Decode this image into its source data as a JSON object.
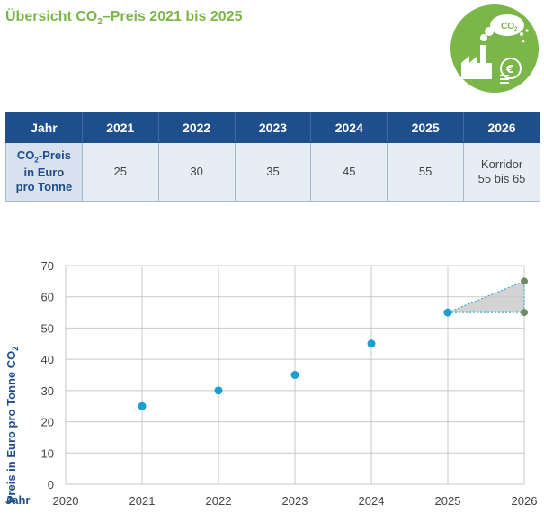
{
  "title": {
    "prefix": "Übersicht CO",
    "sub": "2",
    "suffix": "–Preis 2021 bis 2025"
  },
  "logo": {
    "icon": "co2-factory-coins-icon",
    "text_prefix": "CO",
    "text_sub": "2",
    "color": "#7ab648"
  },
  "table": {
    "header": [
      "Jahr",
      "2021",
      "2022",
      "2023",
      "2024",
      "2025",
      "2026"
    ],
    "row_label": {
      "line1_prefix": "CO",
      "line1_sub": "2",
      "line1_suffix": "-Preis",
      "line2": "in Euro",
      "line3": "pro Tonne"
    },
    "values": [
      "25",
      "30",
      "35",
      "45",
      "55"
    ],
    "last_line1": "Korridor",
    "last_line2": "55 bis 65"
  },
  "colors": {
    "title": "#7ab648",
    "table_header": "#1f4e8c",
    "table_cell": "#e6edf5",
    "points": "#1a9fd0",
    "corridor_points": "#6e8b63",
    "corridor_fill": "#c8c8c8"
  },
  "chart_data": {
    "type": "scatter",
    "x_tick_labels": [
      "2020",
      "2021",
      "2022",
      "2023",
      "2024",
      "2025",
      "2026"
    ],
    "y_tick_labels": [
      "0",
      "10",
      "20",
      "30",
      "40",
      "50",
      "60",
      "70"
    ],
    "xlim": [
      2020,
      2026
    ],
    "ylim": [
      0,
      70
    ],
    "xlabel": "Jahr",
    "ylabel_prefix": "Preis in Euro pro Tonne CO",
    "ylabel_sub": "2",
    "grid": true,
    "series": [
      {
        "x": [
          2021,
          2022,
          2023,
          2024,
          2025
        ],
        "y": [
          25,
          30,
          35,
          45,
          55
        ]
      }
    ],
    "corridor": {
      "x": [
        2025,
        2026
      ],
      "low": [
        55,
        55
      ],
      "high": [
        55,
        65
      ]
    }
  }
}
